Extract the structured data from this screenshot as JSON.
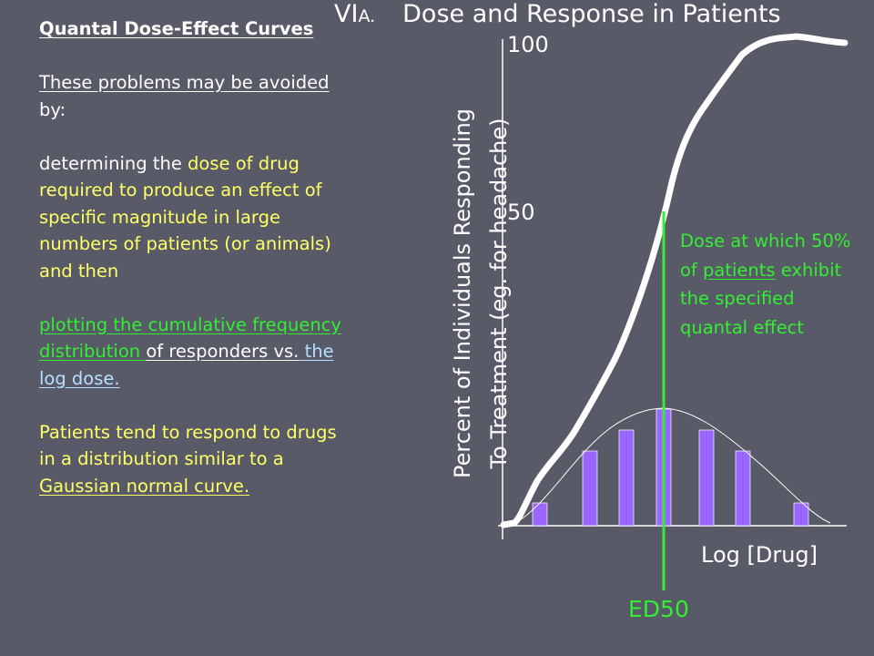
{
  "left_panel": {
    "heading": "Quantal Dose-Effect Curves",
    "intro_underlined": "These problems may be avoided",
    "intro_rest": " by:",
    "para1_a": "determining the ",
    "para1_b": "dose of drug required to produce an effect of specific magnitude in large numbers of patients (or animals) and then",
    "para2_a": "plotting the cumulative frequency distribution ",
    "para2_b": "of responders vs.",
    "para2_c": " the log dose.",
    "para3_a": "Patients tend to respond to drugs in a distribution similar to a ",
    "para3_b": "Gaussian normal curve."
  },
  "title": {
    "section_roman": "VI",
    "section_letter": "A.",
    "heading": "Dose and Response in Patients"
  },
  "diagram": {
    "y_axis_label_line1": "Percent of Individuals Responding",
    "y_axis_label_line2": "To Treatment (eg. for headache)",
    "tick_100": "100",
    "tick_50": "50",
    "x_axis_label": "Log [Drug]",
    "ed50_label": "ED50",
    "annotation_a": "Dose at which 50% of ",
    "annotation_b": "patients",
    "annotation_c": " exhibit the specified quantal effect",
    "colors": {
      "background": "#585a68",
      "curve": "#ffffff",
      "bars": "#9966ff",
      "ed50_line": "#33ee33"
    }
  }
}
